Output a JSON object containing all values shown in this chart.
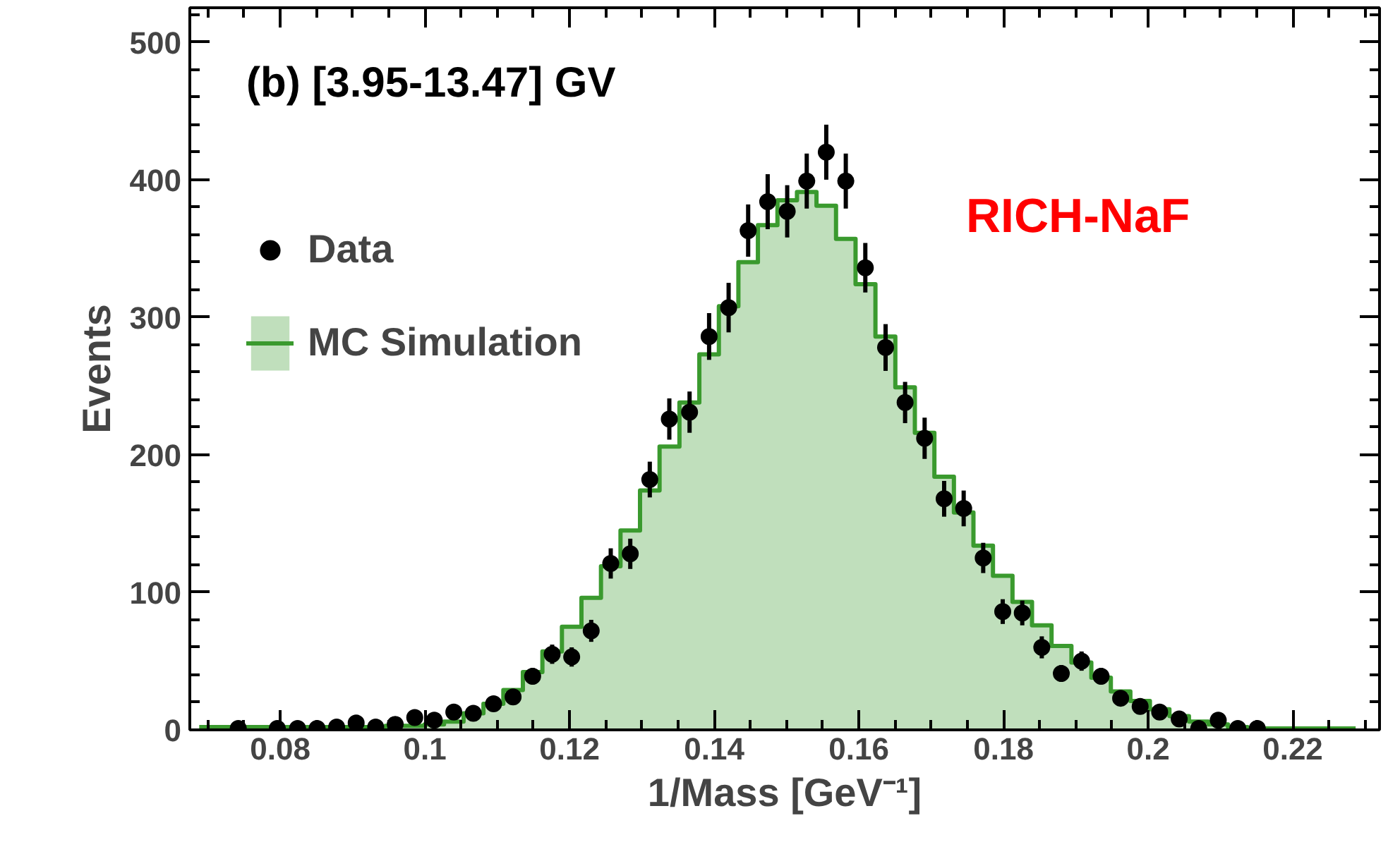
{
  "chart_data": {
    "type": "area",
    "xlabel": "1/Mass [GeV⁻¹]",
    "ylabel": "Events",
    "annotations": [
      "(b) [3.95-13.47] GV",
      "RICH-NaF"
    ],
    "xlim": [
      0.0675,
      0.232
    ],
    "ylim": [
      0,
      525
    ],
    "xticks": [
      0.08,
      0.1,
      0.12,
      0.14,
      0.16,
      0.18,
      0.2,
      0.22
    ],
    "yticks": [
      0,
      100,
      200,
      300,
      400,
      500
    ],
    "legend": "top left",
    "grid": false,
    "series": [
      {
        "name": "MC Simulation",
        "color": "#3a9a2e",
        "x": [
          0.0688,
          0.0715,
          0.0742,
          0.0769,
          0.0796,
          0.0824,
          0.0851,
          0.0878,
          0.0905,
          0.0932,
          0.0959,
          0.0986,
          0.1013,
          0.104,
          0.1067,
          0.1095,
          0.1122,
          0.1149,
          0.1176,
          0.1203,
          0.123,
          0.1257,
          0.1284,
          0.1311,
          0.1338,
          0.1366,
          0.1393,
          0.142,
          0.1447,
          0.1474,
          0.1501,
          0.1528,
          0.1555,
          0.1582,
          0.1609,
          0.1637,
          0.1664,
          0.1691,
          0.1718,
          0.1745,
          0.1772,
          0.1799,
          0.1826,
          0.1853,
          0.188,
          0.1908,
          0.1935,
          0.1962,
          0.1989,
          0.2016,
          0.2043,
          0.207,
          0.2097,
          0.2124,
          0.2151,
          0.2179,
          0.2206,
          0.2233,
          0.226,
          0.2287
        ],
        "values": [
          2,
          2,
          2,
          2,
          2,
          2,
          2,
          2,
          2,
          2,
          3,
          3,
          4,
          6,
          12,
          19,
          29,
          42,
          57,
          75,
          96,
          119,
          145,
          174,
          206,
          238,
          273,
          308,
          340,
          367,
          385,
          391,
          381,
          357,
          324,
          286,
          249,
          216,
          184,
          158,
          134,
          112,
          93,
          76,
          61,
          49,
          38,
          28,
          21,
          15,
          10,
          6,
          4,
          2,
          1,
          1,
          1,
          1,
          1,
          1
        ]
      },
      {
        "name": "Data",
        "type": "scatter",
        "color": "#000000",
        "marker": "circle",
        "x": [
          0.0742,
          0.0796,
          0.0824,
          0.0851,
          0.0878,
          0.0905,
          0.0932,
          0.0959,
          0.0986,
          0.1013,
          0.104,
          0.1067,
          0.1095,
          0.1122,
          0.1149,
          0.1176,
          0.1203,
          0.123,
          0.1257,
          0.1284,
          0.1311,
          0.1338,
          0.1366,
          0.1393,
          0.142,
          0.1447,
          0.1474,
          0.1501,
          0.1528,
          0.1555,
          0.1582,
          0.1609,
          0.1637,
          0.1664,
          0.1691,
          0.1718,
          0.1745,
          0.1772,
          0.1799,
          0.1826,
          0.1853,
          0.188,
          0.1908,
          0.1935,
          0.1962,
          0.1989,
          0.2016,
          0.2043,
          0.207,
          0.2097,
          0.2124,
          0.2151
        ],
        "values": [
          1,
          1,
          1,
          1,
          2,
          5,
          2,
          4,
          9,
          7,
          13,
          12,
          19,
          24,
          39,
          55,
          53,
          72,
          121,
          128,
          182,
          226,
          231,
          286,
          307,
          363,
          384,
          377,
          399,
          420,
          399,
          336,
          278,
          238,
          212,
          168,
          161,
          125,
          86,
          85,
          60,
          41,
          50,
          39,
          23,
          17,
          13,
          8,
          1,
          7,
          1,
          1
        ],
        "errors": [
          1,
          1,
          1,
          1,
          1,
          2,
          1,
          2,
          3,
          3,
          4,
          3,
          4,
          5,
          6,
          7,
          7,
          8,
          11,
          11,
          13,
          15,
          15,
          17,
          18,
          19,
          20,
          19,
          20,
          20,
          20,
          18,
          17,
          15,
          15,
          13,
          13,
          11,
          9,
          9,
          8,
          6,
          7,
          6,
          5,
          4,
          4,
          3,
          1,
          3,
          1,
          1
        ]
      }
    ]
  }
}
